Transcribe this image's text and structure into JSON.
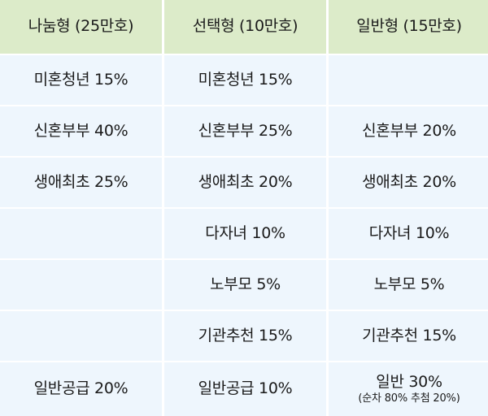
{
  "headers": [
    "나눔형 (25만호)",
    "선택형 (10만호)",
    "일반형 (15만호)"
  ],
  "rows": [
    [
      "미혼청년 15%",
      "미혼청년 15%",
      ""
    ],
    [
      "신혼부부 40%",
      "신혼부부 25%",
      "신혼부부 20%"
    ],
    [
      "생애최초 25%",
      "생애최초 20%",
      "생애최초 20%"
    ],
    [
      "",
      "다자녀 10%",
      "다자녀 10%"
    ],
    [
      "",
      "노부모 5%",
      "노부모 5%"
    ],
    [
      "",
      "기관추천 15%",
      "기관추천 15%"
    ],
    [
      "일반공급 20%",
      "일반공급 10%",
      "일반 30%"
    ]
  ],
  "notes": {
    "general_supply_breakdown": "(순차 80% 추첨 20%)"
  },
  "colors": {
    "header_bg": "#dcebc9",
    "cell_bg": "#eef6fd"
  }
}
